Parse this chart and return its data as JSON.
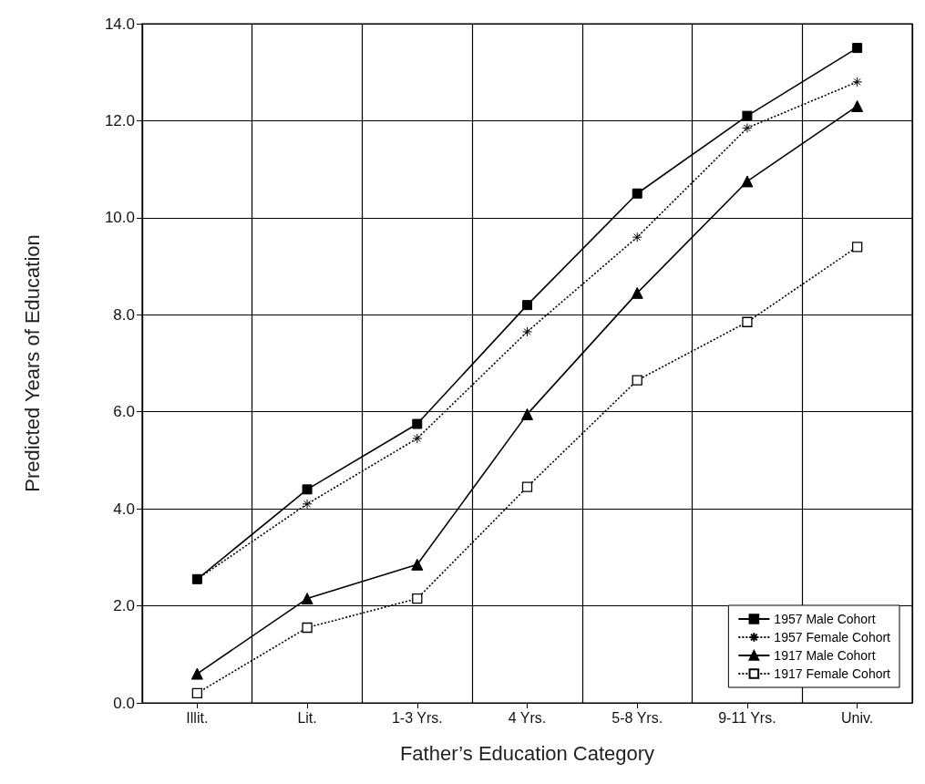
{
  "chart_data": {
    "type": "line",
    "xlabel": "Father’s Education Category",
    "ylabel": "Predicted Years of Education",
    "categories": [
      "Illit.",
      "Lit.",
      "1-3 Yrs.",
      "4 Yrs.",
      "5-8 Yrs.",
      "9-11 Yrs.",
      "Univ."
    ],
    "series": [
      {
        "name": "1957 Male Cohort",
        "color": "#000000",
        "marker": "square",
        "line_style": "solid",
        "values": [
          2.55,
          4.4,
          5.75,
          8.2,
          10.5,
          12.1,
          13.5
        ]
      },
      {
        "name": "1957 Female Cohort",
        "color": "#000000",
        "marker": "cross",
        "line_style": "dotted",
        "values": [
          2.55,
          4.1,
          5.45,
          7.65,
          9.6,
          11.85,
          12.8
        ]
      },
      {
        "name": "1917 Male Cohort",
        "color": "#000000",
        "marker": "triangle",
        "line_style": "solid",
        "values": [
          0.6,
          2.15,
          2.85,
          5.95,
          8.45,
          10.75,
          12.3
        ]
      },
      {
        "name": "1917 Female Cohort",
        "color": "#000000",
        "marker": "square",
        "line_style": "dotted",
        "values": [
          0.2,
          1.55,
          2.15,
          4.45,
          6.65,
          7.85,
          9.4
        ]
      }
    ],
    "ylim": [
      0,
      14
    ],
    "yticks": [
      {
        "value": 0,
        "label": "0.0"
      },
      {
        "value": 2,
        "label": "2.0"
      },
      {
        "value": 4,
        "label": "4.0"
      },
      {
        "value": 6,
        "label": "6.0"
      },
      {
        "value": 8,
        "label": "8.0"
      },
      {
        "value": 10,
        "label": "10.0"
      },
      {
        "value": 12,
        "label": "12.0"
      },
      {
        "value": 14,
        "label": "14.0"
      }
    ],
    "grid": true,
    "legend": "bottom right"
  }
}
